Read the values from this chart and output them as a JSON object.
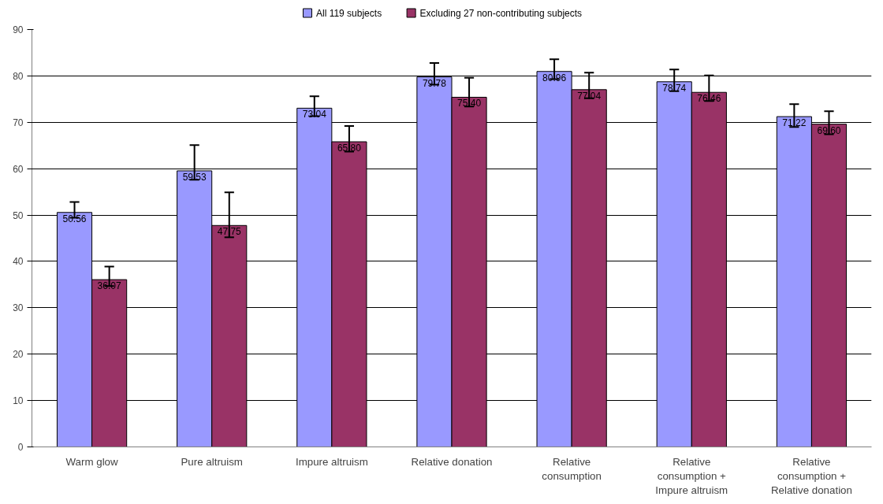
{
  "chart_data": {
    "type": "bar",
    "categories": [
      "Warm glow",
      "Pure altruism",
      "Impure altruism",
      "Relative donation",
      "Relative consumption",
      "Relative consumption + Impure altruism",
      "Relative consumption + Relative donation"
    ],
    "series": [
      {
        "name": "All 119 subjects",
        "color": "#9999ff",
        "values": [
          50.56,
          59.53,
          73.04,
          79.78,
          80.96,
          78.74,
          71.22
        ],
        "value_labels": [
          "50.56",
          "59.53",
          "73.04",
          "79.78",
          "80.96",
          "78.74",
          "71.22"
        ],
        "errors": [
          [
            49.4,
            52.8
          ],
          [
            57.6,
            65.1
          ],
          [
            71.3,
            75.6
          ],
          [
            78.1,
            82.8
          ],
          [
            79.3,
            83.6
          ],
          [
            76.7,
            81.4
          ],
          [
            69.0,
            73.9
          ]
        ]
      },
      {
        "name": "Excluding 27 non-contributing subjects",
        "color": "#993366",
        "values": [
          36.07,
          47.75,
          65.8,
          75.4,
          77.04,
          76.46,
          69.6
        ],
        "value_labels": [
          "36.07",
          "47.75",
          "65.80",
          "75.40",
          "77.04",
          "76.46",
          "69.60"
        ],
        "errors": [
          [
            34.7,
            38.9
          ],
          [
            45.2,
            54.9
          ],
          [
            63.7,
            69.2
          ],
          [
            73.4,
            79.6
          ],
          [
            75.2,
            80.7
          ],
          [
            74.6,
            80.1
          ],
          [
            67.4,
            72.4
          ]
        ]
      }
    ],
    "ylim": [
      0,
      90
    ],
    "yticks": [
      0,
      10,
      20,
      30,
      40,
      50,
      60,
      70,
      80,
      90
    ],
    "grid": "y",
    "legend": "top"
  }
}
